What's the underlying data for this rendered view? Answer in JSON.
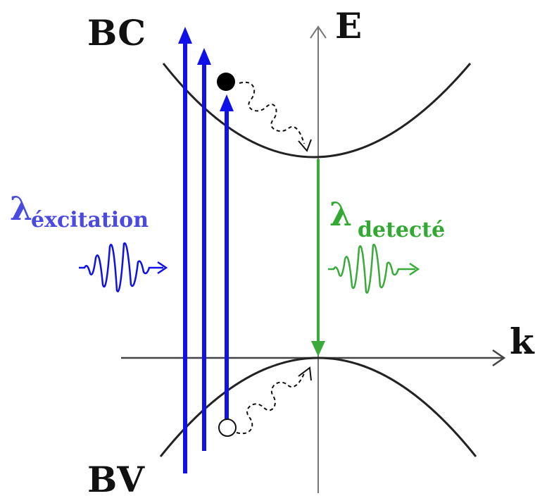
{
  "labels": {
    "conduction_band": "BC",
    "valence_band": "BV",
    "energy_axis": "E",
    "momentum_axis": "k",
    "excitation_symbol": "λ",
    "excitation_subscript": "éxcitation",
    "detected_symbol": "λ",
    "detected_subscript": "detecté"
  },
  "colors": {
    "excitation": "#1010e8",
    "excitation_text": "#4a4ae0",
    "emission": "#3aaa3a",
    "emission_text": "#33a833",
    "axes": "#666666",
    "bands": "#222222",
    "electron": "#000000",
    "hole": "#ffffff"
  },
  "icons": {
    "electron": "filled-circle",
    "hole": "open-circle",
    "relaxation": "wavy-dashed-arrow",
    "photon": "wave-packet-arrow"
  }
}
